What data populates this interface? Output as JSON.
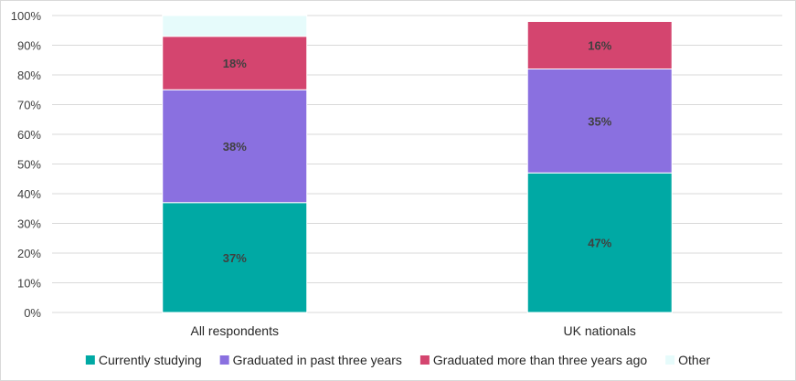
{
  "chart_data": {
    "type": "bar",
    "stacked": true,
    "categories": [
      "All respondents",
      "UK nationals"
    ],
    "series": [
      {
        "name": "Currently studying",
        "values": [
          37,
          47
        ],
        "labels": [
          "37%",
          "47%"
        ],
        "color": "#00a9a4"
      },
      {
        "name": "Graduated in past three years",
        "values": [
          38,
          35
        ],
        "labels": [
          "38%",
          "35%"
        ],
        "color": "#8a70e0"
      },
      {
        "name": "Graduated more than three years ago",
        "values": [
          18,
          16
        ],
        "labels": [
          "18%",
          "16%"
        ],
        "color": "#d4456f"
      },
      {
        "name": "Other",
        "values": [
          7,
          0
        ],
        "labels": [
          "",
          ""
        ],
        "color": "#e6fbfb"
      }
    ],
    "yticks": [
      "0%",
      "10%",
      "20%",
      "30%",
      "40%",
      "50%",
      "60%",
      "70%",
      "80%",
      "90%",
      "100%"
    ],
    "ylim": [
      0,
      100
    ],
    "grid": true,
    "legend": "bottom"
  }
}
